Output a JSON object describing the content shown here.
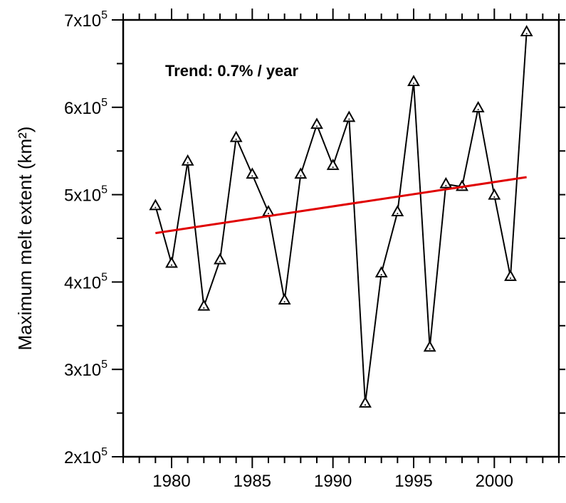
{
  "chart_data": {
    "type": "line",
    "title": "",
    "xlabel": "",
    "ylabel": "Maximum melt extent (km²)",
    "xlim": [
      1977,
      2004
    ],
    "ylim": [
      200000,
      700000
    ],
    "x_ticks": [
      1980,
      1985,
      1990,
      1995,
      2000
    ],
    "x_tick_labels": [
      "1980",
      "1985",
      "1990",
      "1995",
      "2000"
    ],
    "y_ticks": [
      {
        "value": 200000,
        "base": "2x10",
        "exp": "5"
      },
      {
        "value": 300000,
        "base": "3x10",
        "exp": "5"
      },
      {
        "value": 400000,
        "base": "4x10",
        "exp": "5"
      },
      {
        "value": 500000,
        "base": "5x10",
        "exp": "5"
      },
      {
        "value": 600000,
        "base": "6x10",
        "exp": "5"
      },
      {
        "value": 700000,
        "base": "7x10",
        "exp": "5"
      }
    ],
    "grid": false,
    "annotation": "Trend: 0.7% / year",
    "series": [
      {
        "marker": "triangle",
        "color": "#000000",
        "x": [
          1979,
          1980,
          1981,
          1982,
          1983,
          1984,
          1985,
          1986,
          1987,
          1988,
          1989,
          1990,
          1991,
          1992,
          1993,
          1994,
          1995,
          1996,
          1997,
          1998,
          1999,
          2000,
          2001,
          2002
        ],
        "values": [
          487000,
          421000,
          538000,
          372000,
          425000,
          565000,
          523000,
          480000,
          379000,
          523000,
          580000,
          533000,
          588000,
          261000,
          410000,
          480000,
          629000,
          325000,
          512000,
          509000,
          599000,
          499000,
          406000,
          686000
        ]
      }
    ],
    "trend_line": {
      "color": "#e00000",
      "x": [
        1979,
        2002
      ],
      "values": [
        456000,
        520000
      ]
    }
  }
}
